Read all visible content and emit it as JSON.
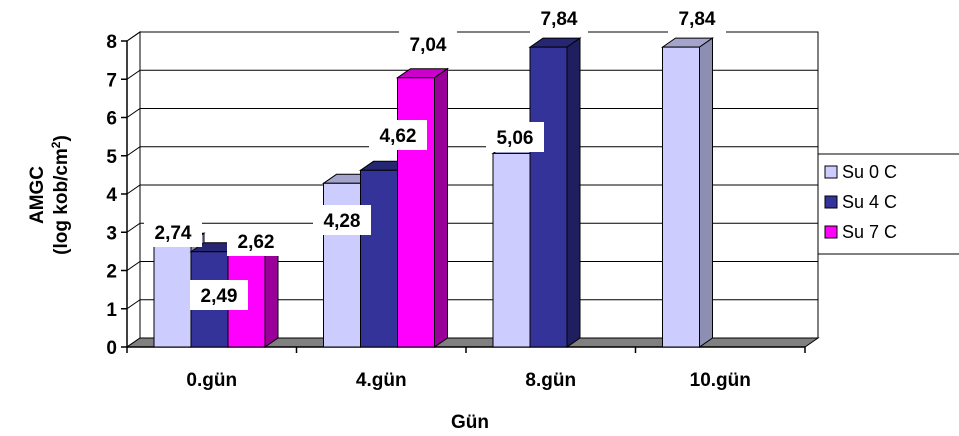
{
  "chart_data": {
    "type": "bar",
    "categories": [
      "0.gün",
      "4.gün",
      "8.gün",
      "10.gün"
    ],
    "series": [
      {
        "name": "Su 0 C",
        "values": [
          2.74,
          4.28,
          5.06,
          7.84
        ],
        "labels": [
          "2,74",
          "4,28",
          "5,06",
          "7,84"
        ]
      },
      {
        "name": "Su 4 C",
        "values": [
          2.49,
          4.62,
          7.84,
          null
        ],
        "labels": [
          "2,49",
          "4,62",
          "7,84",
          ""
        ]
      },
      {
        "name": "Su 7 C",
        "values": [
          2.62,
          7.04,
          null,
          null
        ],
        "labels": [
          "2,62",
          "7,04",
          "",
          ""
        ]
      }
    ],
    "colors": {
      "Su 0 C": {
        "front": "#ccccff",
        "side": "#8e8eb3",
        "top": "#a3a3cc"
      },
      "Su 4 C": {
        "front": "#333399",
        "side": "#1f1f60",
        "top": "#262673"
      },
      "Su 7 C": {
        "front": "#ff00ff",
        "side": "#99009a",
        "top": "#cc00cc"
      }
    },
    "floor_color": "#808080",
    "xlabel": "Gün",
    "ylabel_line1": "AMGC",
    "ylabel_line2": "(log kob/cm",
    "ylabel_sup": "2",
    "ylabel_close": ")",
    "yticks": [
      "0",
      "1",
      "2",
      "3",
      "4",
      "5",
      "6",
      "7",
      "8"
    ],
    "ylim": [
      0,
      8
    ],
    "grid": true,
    "legend": "right"
  }
}
